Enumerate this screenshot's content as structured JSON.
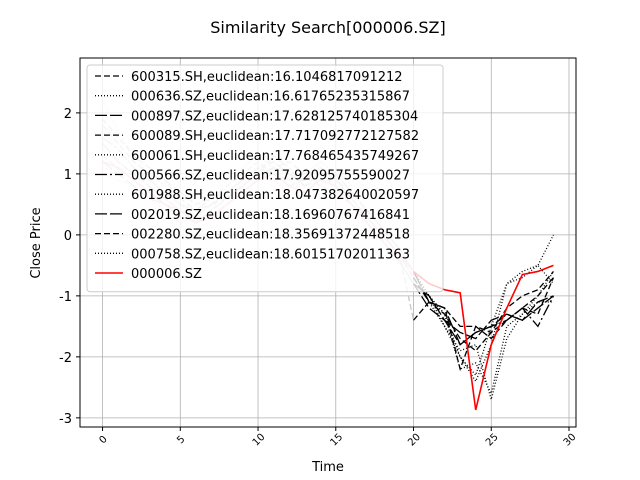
{
  "chart_data": {
    "type": "line",
    "title": "Similarity Search[000006.SZ]",
    "xlabel": "Time",
    "ylabel": "Close Price",
    "xlim": [
      -1.45,
      30.45
    ],
    "ylim": [
      -3.15,
      2.9
    ],
    "xticks": [
      0,
      5,
      10,
      15,
      20,
      25,
      30
    ],
    "yticks": [
      -3,
      -2,
      -1,
      0,
      1,
      2
    ],
    "grid": true,
    "legend_position": "top-left",
    "colors": {
      "target": "#ff0000",
      "neighbor": "#000000",
      "neighbor_faded": "#c8c8c8",
      "target_faded": "#f4b8b8",
      "grid": "#b0b0b0"
    },
    "series": [
      {
        "name": "600315.SH,euclidean:16.1046817091212",
        "dash": "6,3",
        "values": [
          1.8,
          1.5,
          1.2,
          1.0,
          0.9,
          0.6,
          0.4,
          0.5,
          0.7,
          0.9,
          1.1,
          1.2,
          1.0,
          0.9,
          1.1,
          0.9,
          0.6,
          0.3,
          0.0,
          -0.3,
          -0.7,
          -1.1,
          -1.3,
          -1.7,
          -1.9,
          -1.6,
          -1.4,
          -1.2,
          -1.0,
          -0.7
        ]
      },
      {
        "name": "000636.SZ,euclidean:16.61765235315867",
        "dash": "1,2",
        "values": [
          2.2,
          1.7,
          1.3,
          1.0,
          0.8,
          0.5,
          0.3,
          0.4,
          0.8,
          1.1,
          1.3,
          1.1,
          0.8,
          0.9,
          1.2,
          1.0,
          0.7,
          0.4,
          0.1,
          -0.2,
          -0.6,
          -1.0,
          -1.5,
          -2.0,
          -2.3,
          -1.5,
          -0.8,
          -0.7,
          -0.5,
          0.0
        ]
      },
      {
        "name": "000897.SZ,euclidean:17.628125740185304",
        "dash": "12,3",
        "values": [
          1.5,
          1.2,
          1.0,
          0.8,
          0.6,
          0.4,
          0.3,
          0.5,
          0.6,
          0.8,
          1.0,
          1.3,
          1.1,
          0.8,
          1.0,
          0.8,
          0.5,
          0.2,
          -0.1,
          -0.4,
          -0.8,
          -1.0,
          -1.4,
          -1.6,
          -1.7,
          -1.4,
          -1.3,
          -1.4,
          -1.1,
          -1.0
        ]
      },
      {
        "name": "600089.SH,euclidean:17.717092772127582",
        "dash": "6,3",
        "values": [
          1.3,
          1.1,
          0.9,
          0.7,
          0.5,
          0.4,
          0.2,
          0.3,
          0.5,
          0.7,
          0.9,
          1.1,
          1.2,
          1.0,
          0.8,
          0.7,
          0.5,
          0.3,
          0.0,
          -0.3,
          -0.6,
          -1.1,
          -1.2,
          -1.5,
          -1.5,
          -1.7,
          -1.4,
          -1.2,
          -1.3,
          -0.7
        ]
      },
      {
        "name": "600061.SH,euclidean:17.768465435749267",
        "dash": "1,2",
        "values": [
          1.0,
          0.9,
          0.8,
          0.6,
          0.4,
          0.3,
          0.2,
          0.4,
          0.6,
          0.8,
          1.0,
          0.9,
          0.7,
          0.9,
          1.0,
          0.8,
          0.6,
          0.3,
          0.0,
          -0.3,
          -0.6,
          -1.0,
          -1.3,
          -2.2,
          -2.1,
          -2.6,
          -1.5,
          -1.3,
          -1.0,
          -0.6
        ]
      },
      {
        "name": "000566.SZ,euclidean:17.92095755590027",
        "dash": "12,3,2,3",
        "values": [
          1.6,
          1.4,
          1.1,
          0.9,
          0.7,
          0.5,
          0.4,
          0.6,
          0.7,
          0.9,
          1.1,
          1.0,
          0.9,
          1.0,
          1.1,
          0.9,
          0.7,
          0.4,
          0.1,
          -0.2,
          -0.6,
          -1.1,
          -1.2,
          -1.8,
          -1.6,
          -1.5,
          -1.4,
          -1.2,
          -1.5,
          -1.0
        ]
      },
      {
        "name": "601988.SH,euclidean:18.047382640020597",
        "dash": "1,2",
        "values": [
          1.4,
          1.2,
          1.0,
          0.8,
          0.6,
          0.4,
          0.3,
          0.5,
          0.7,
          0.8,
          1.0,
          1.2,
          1.0,
          0.8,
          1.0,
          0.9,
          0.6,
          0.3,
          0.0,
          -0.3,
          -0.7,
          -1.1,
          -1.5,
          -1.9,
          -1.8,
          -2.7,
          -1.7,
          -1.3,
          -1.1,
          -1.1
        ]
      },
      {
        "name": "002019.SZ,euclidean:18.16960767416841",
        "dash": "12,3",
        "values": [
          1.2,
          1.0,
          0.8,
          0.6,
          0.5,
          0.3,
          0.2,
          0.4,
          0.6,
          0.8,
          1.0,
          1.1,
          1.0,
          0.8,
          0.9,
          0.8,
          0.5,
          0.2,
          -0.1,
          -0.4,
          -0.8,
          -1.2,
          -1.4,
          -1.8,
          -1.6,
          -1.5,
          -1.3,
          -1.4,
          -1.2,
          -1.0
        ]
      },
      {
        "name": "002280.SZ,euclidean:18.35691372448518",
        "dash": "6,3",
        "values": [
          1.9,
          1.6,
          1.3,
          1.1,
          0.9,
          0.7,
          0.5,
          0.6,
          0.8,
          1.0,
          1.2,
          1.0,
          0.8,
          0.9,
          1.1,
          1.0,
          0.7,
          0.4,
          0.1,
          -0.2,
          -1.4,
          -1.1,
          -1.2,
          -2.2,
          -1.5,
          -1.6,
          -1.2,
          -1.0,
          -0.9,
          -0.6
        ]
      },
      {
        "name": "000758.SZ,euclidean:18.60151702011363",
        "dash": "1,2",
        "values": [
          1.7,
          1.4,
          1.1,
          0.9,
          0.7,
          0.5,
          0.3,
          0.5,
          0.7,
          0.9,
          1.1,
          1.0,
          0.8,
          1.0,
          1.2,
          1.0,
          0.7,
          0.4,
          0.1,
          -0.2,
          -0.6,
          -1.0,
          -1.3,
          -2.0,
          -2.4,
          -1.8,
          -0.8,
          -0.6,
          -0.5,
          -0.8
        ]
      },
      {
        "name": "000006.SZ",
        "target": true,
        "values": [
          1.2,
          1.1,
          0.9,
          0.7,
          0.5,
          0.4,
          0.2,
          0.3,
          0.5,
          0.7,
          0.9,
          1.0,
          0.8,
          0.7,
          0.9,
          0.8,
          0.5,
          0.3,
          0.0,
          -0.3,
          -0.6,
          -0.8,
          -0.9,
          -0.95,
          -2.87,
          -1.8,
          -1.2,
          -0.65,
          -0.6,
          -0.5
        ]
      }
    ]
  }
}
